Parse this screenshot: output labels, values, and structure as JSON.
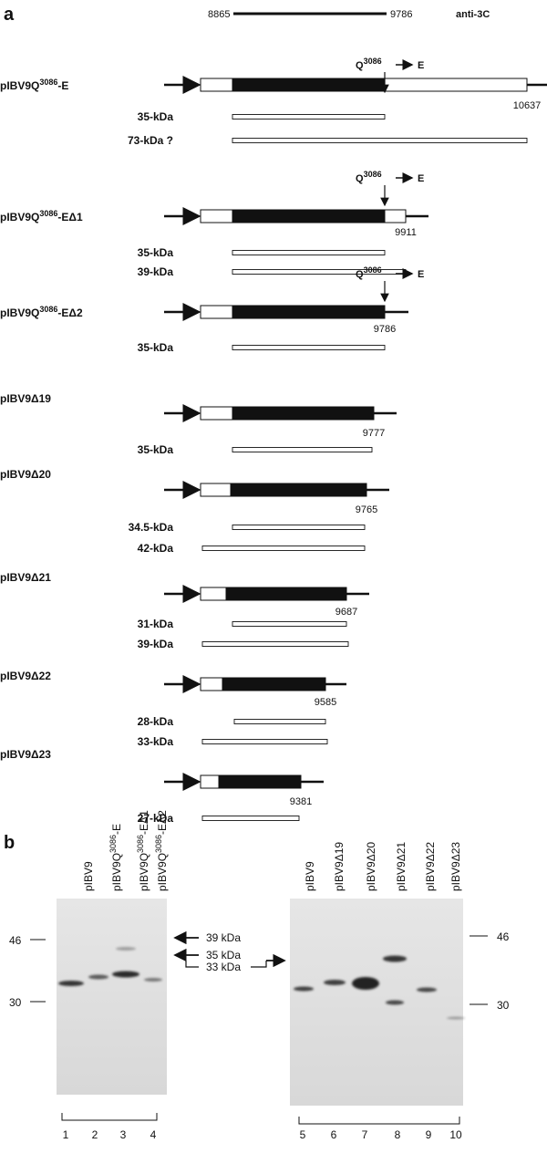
{
  "panel_a": {
    "label": "a",
    "antibody": {
      "start": "8865",
      "end": "9786",
      "name": "anti-3C"
    },
    "mutation": {
      "from": "Q",
      "position": "3086",
      "to": "E"
    },
    "constructs": [
      {
        "name": [
          "pIBV9Q",
          "3086",
          "-E"
        ],
        "end": "10637",
        "products": [
          "35-kDa",
          "73-kDa ?"
        ]
      },
      {
        "name": [
          "pIBV9Q",
          "3086",
          "-EΔ1"
        ],
        "end": "9911",
        "products": [
          "35-kDa",
          "39-kDa"
        ]
      },
      {
        "name": [
          "pIBV9Q",
          "3086",
          "-EΔ2"
        ],
        "end": "9786",
        "products": [
          "35-kDa"
        ]
      },
      {
        "name": [
          "pIBV9Δ19"
        ],
        "end": "9777",
        "products": [
          "35-kDa"
        ]
      },
      {
        "name": [
          "pIBV9Δ20"
        ],
        "end": "9765",
        "products": [
          "34.5-kDa",
          "42-kDa"
        ]
      },
      {
        "name": [
          "pIBV9Δ21"
        ],
        "end": "9687",
        "products": [
          "31-kDa",
          "39-kDa"
        ]
      },
      {
        "name": [
          "pIBV9Δ22"
        ],
        "end": "9585",
        "products": [
          "28-kDa",
          "33-kDa"
        ]
      },
      {
        "name": [
          "pIBV9Δ23"
        ],
        "end": "9381",
        "products": [
          "27-kDa"
        ]
      }
    ]
  },
  "panel_b": {
    "label": "b",
    "left_blot": {
      "lanes": [
        {
          "name": [
            "pIBV9"
          ],
          "number": "1"
        },
        {
          "name": [
            "pIBV9Q",
            "3086",
            "-E"
          ],
          "number": "2"
        },
        {
          "name": [
            "pIBV9Q",
            "3086",
            "-EΔ1"
          ],
          "number": "3"
        },
        {
          "name": [
            "pIBV9Q",
            "3086",
            "-EΔ2"
          ],
          "number": "4"
        }
      ],
      "markers": [
        "46",
        "30"
      ]
    },
    "right_blot": {
      "lanes": [
        {
          "name": [
            "pIBV9"
          ],
          "number": "5"
        },
        {
          "name": [
            "pIBV9Δ19"
          ],
          "number": "6"
        },
        {
          "name": [
            "pIBV9Δ20"
          ],
          "number": "7"
        },
        {
          "name": [
            "pIBV9Δ21"
          ],
          "number": "8"
        },
        {
          "name": [
            "pIBV9Δ22"
          ],
          "number": "9"
        },
        {
          "name": [
            "pIBV9Δ23"
          ],
          "number": "10"
        }
      ],
      "markers": [
        "46",
        "30"
      ]
    },
    "size_labels": [
      "39 kDa",
      "35 kDa",
      "33 kDa"
    ]
  }
}
